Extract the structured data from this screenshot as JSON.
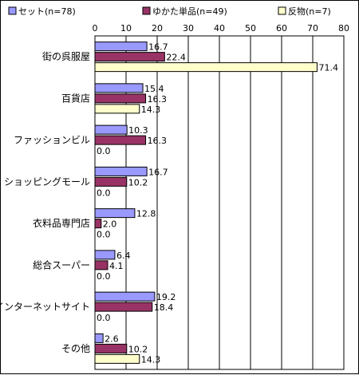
{
  "chart_data": {
    "type": "bar",
    "orientation": "horizontal",
    "categories": [
      "街の呉服屋",
      "百貨店",
      "ファッションビル",
      "ショッピングモール",
      "衣料品専門店",
      "総合スーパー",
      "インターネットサイト",
      "その他"
    ],
    "series": [
      {
        "name": "セット(n=78)",
        "values": [
          16.7,
          15.4,
          10.3,
          16.7,
          12.8,
          6.4,
          19.2,
          2.6
        ]
      },
      {
        "name": "ゆかた単品(n=49)",
        "values": [
          22.4,
          16.3,
          16.3,
          10.2,
          2.0,
          4.1,
          18.4,
          10.2
        ]
      },
      {
        "name": "反物(n=7)",
        "values": [
          71.4,
          14.3,
          0.0,
          0.0,
          0.0,
          0.0,
          0.0,
          14.3
        ]
      }
    ],
    "xlim": [
      0,
      80
    ],
    "ticks": [
      0,
      10,
      20,
      30,
      40,
      50,
      60,
      70,
      80
    ],
    "grid": true,
    "legend_position": "top",
    "colors": [
      "#9999ff",
      "#993366",
      "#ffffcc"
    ]
  }
}
